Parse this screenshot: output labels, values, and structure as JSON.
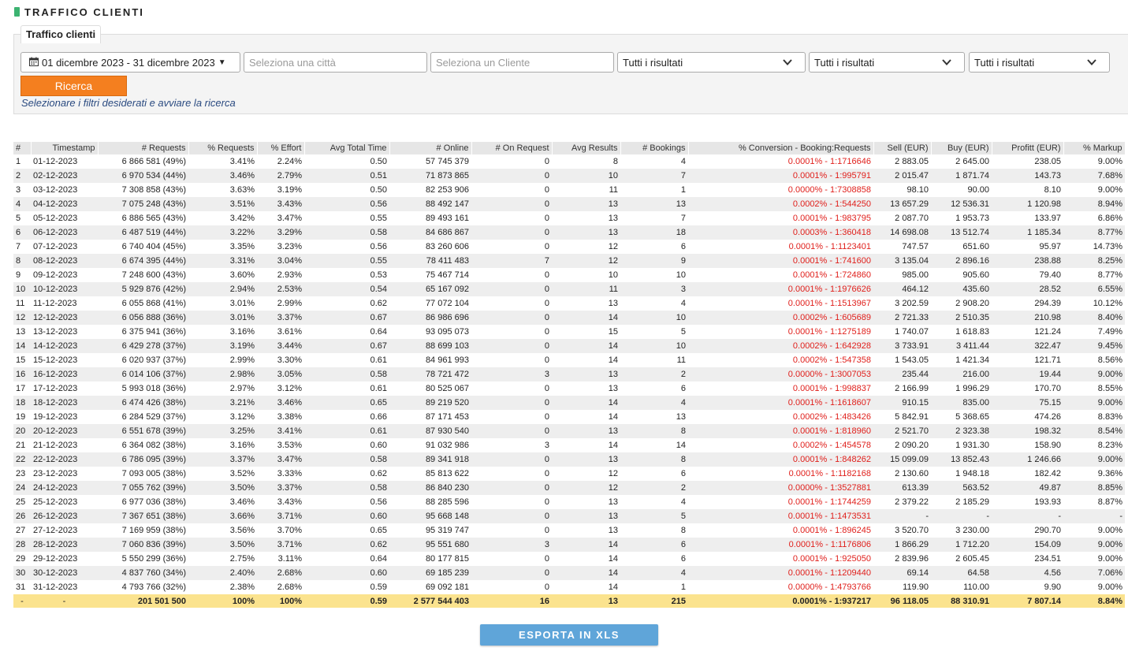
{
  "colors": {
    "header_marker": "#3cb371",
    "search_button": "#f47f1f",
    "conversion_text": "#e0201c",
    "total_row": "#fbe38e",
    "export_button": "#5fa5d9"
  },
  "header": {
    "title": "TRAFFICO CLIENTI"
  },
  "filters": {
    "panel_title": "Traffico clienti",
    "date_range": "01 dicembre 2023 - 31 dicembre 2023",
    "city_placeholder": "Seleziona una città",
    "client_placeholder": "Seleziona un Cliente",
    "select1": "Tutti i risultati",
    "select2": "Tutti i risultati",
    "select3": "Tutti i risultati",
    "search_label": "Ricerca",
    "hint": "Selezionare i filtri desiderati e avviare la ricerca",
    "icons": {
      "date": "calendar-icon",
      "dropdown": "chevron-down-icon"
    }
  },
  "table": {
    "columns": [
      "#",
      "Timestamp",
      "# Requests",
      "% Requests",
      "% Effort",
      "Avg Total Time",
      "# Online",
      "# On Request",
      "Avg Results",
      "# Bookings",
      "% Conversion - Booking:Requests",
      "Sell (EUR)",
      "Buy (EUR)",
      "Profitt (EUR)",
      "% Markup"
    ],
    "rows": [
      [
        "1",
        "01-12-2023",
        "6 866 581 (49%)",
        "3.41%",
        "2.24%",
        "0.50",
        "57 745 379",
        "0",
        "8",
        "4",
        "0.0001% - 1:1716646",
        "2 883.05",
        "2 645.00",
        "238.05",
        "9.00%"
      ],
      [
        "2",
        "02-12-2023",
        "6 970 534 (44%)",
        "3.46%",
        "2.79%",
        "0.51",
        "71 873 865",
        "0",
        "10",
        "7",
        "0.0001% - 1:995791",
        "2 015.47",
        "1 871.74",
        "143.73",
        "7.68%"
      ],
      [
        "3",
        "03-12-2023",
        "7 308 858 (43%)",
        "3.63%",
        "3.19%",
        "0.50",
        "82 253 906",
        "0",
        "11",
        "1",
        "0.0000% - 1:7308858",
        "98.10",
        "90.00",
        "8.10",
        "9.00%"
      ],
      [
        "4",
        "04-12-2023",
        "7 075 248 (43%)",
        "3.51%",
        "3.43%",
        "0.56",
        "88 492 147",
        "0",
        "13",
        "13",
        "0.0002% - 1:544250",
        "13 657.29",
        "12 536.31",
        "1 120.98",
        "8.94%"
      ],
      [
        "5",
        "05-12-2023",
        "6 886 565 (43%)",
        "3.42%",
        "3.47%",
        "0.55",
        "89 493 161",
        "0",
        "13",
        "7",
        "0.0001% - 1:983795",
        "2 087.70",
        "1 953.73",
        "133.97",
        "6.86%"
      ],
      [
        "6",
        "06-12-2023",
        "6 487 519 (44%)",
        "3.22%",
        "3.29%",
        "0.58",
        "84 686 867",
        "0",
        "13",
        "18",
        "0.0003% - 1:360418",
        "14 698.08",
        "13 512.74",
        "1 185.34",
        "8.77%"
      ],
      [
        "7",
        "07-12-2023",
        "6 740 404 (45%)",
        "3.35%",
        "3.23%",
        "0.56",
        "83 260 606",
        "0",
        "12",
        "6",
        "0.0001% - 1:1123401",
        "747.57",
        "651.60",
        "95.97",
        "14.73%"
      ],
      [
        "8",
        "08-12-2023",
        "6 674 395 (44%)",
        "3.31%",
        "3.04%",
        "0.55",
        "78 411 483",
        "7",
        "12",
        "9",
        "0.0001% - 1:741600",
        "3 135.04",
        "2 896.16",
        "238.88",
        "8.25%"
      ],
      [
        "9",
        "09-12-2023",
        "7 248 600 (43%)",
        "3.60%",
        "2.93%",
        "0.53",
        "75 467 714",
        "0",
        "10",
        "10",
        "0.0001% - 1:724860",
        "985.00",
        "905.60",
        "79.40",
        "8.77%"
      ],
      [
        "10",
        "10-12-2023",
        "5 929 876 (42%)",
        "2.94%",
        "2.53%",
        "0.54",
        "65 167 092",
        "0",
        "11",
        "3",
        "0.0001% - 1:1976626",
        "464.12",
        "435.60",
        "28.52",
        "6.55%"
      ],
      [
        "11",
        "11-12-2023",
        "6 055 868 (41%)",
        "3.01%",
        "2.99%",
        "0.62",
        "77 072 104",
        "0",
        "13",
        "4",
        "0.0001% - 1:1513967",
        "3 202.59",
        "2 908.20",
        "294.39",
        "10.12%"
      ],
      [
        "12",
        "12-12-2023",
        "6 056 888 (36%)",
        "3.01%",
        "3.37%",
        "0.67",
        "86 986 696",
        "0",
        "14",
        "10",
        "0.0002% - 1:605689",
        "2 721.33",
        "2 510.35",
        "210.98",
        "8.40%"
      ],
      [
        "13",
        "13-12-2023",
        "6 375 941 (36%)",
        "3.16%",
        "3.61%",
        "0.64",
        "93 095 073",
        "0",
        "15",
        "5",
        "0.0001% - 1:1275189",
        "1 740.07",
        "1 618.83",
        "121.24",
        "7.49%"
      ],
      [
        "14",
        "14-12-2023",
        "6 429 278 (37%)",
        "3.19%",
        "3.44%",
        "0.67",
        "88 699 103",
        "0",
        "14",
        "10",
        "0.0002% - 1:642928",
        "3 733.91",
        "3 411.44",
        "322.47",
        "9.45%"
      ],
      [
        "15",
        "15-12-2023",
        "6 020 937 (37%)",
        "2.99%",
        "3.30%",
        "0.61",
        "84 961 993",
        "0",
        "14",
        "11",
        "0.0002% - 1:547358",
        "1 543.05",
        "1 421.34",
        "121.71",
        "8.56%"
      ],
      [
        "16",
        "16-12-2023",
        "6 014 106 (37%)",
        "2.98%",
        "3.05%",
        "0.58",
        "78 721 472",
        "3",
        "13",
        "2",
        "0.0000% - 1:3007053",
        "235.44",
        "216.00",
        "19.44",
        "9.00%"
      ],
      [
        "17",
        "17-12-2023",
        "5 993 018 (36%)",
        "2.97%",
        "3.12%",
        "0.61",
        "80 525 067",
        "0",
        "13",
        "6",
        "0.0001% - 1:998837",
        "2 166.99",
        "1 996.29",
        "170.70",
        "8.55%"
      ],
      [
        "18",
        "18-12-2023",
        "6 474 426 (38%)",
        "3.21%",
        "3.46%",
        "0.65",
        "89 219 520",
        "0",
        "14",
        "4",
        "0.0001% - 1:1618607",
        "910.15",
        "835.00",
        "75.15",
        "9.00%"
      ],
      [
        "19",
        "19-12-2023",
        "6 284 529 (37%)",
        "3.12%",
        "3.38%",
        "0.66",
        "87 171 453",
        "0",
        "14",
        "13",
        "0.0002% - 1:483426",
        "5 842.91",
        "5 368.65",
        "474.26",
        "8.83%"
      ],
      [
        "20",
        "20-12-2023",
        "6 551 678 (39%)",
        "3.25%",
        "3.41%",
        "0.61",
        "87 930 540",
        "0",
        "13",
        "8",
        "0.0001% - 1:818960",
        "2 521.70",
        "2 323.38",
        "198.32",
        "8.54%"
      ],
      [
        "21",
        "21-12-2023",
        "6 364 082 (38%)",
        "3.16%",
        "3.53%",
        "0.60",
        "91 032 986",
        "3",
        "14",
        "14",
        "0.0002% - 1:454578",
        "2 090.20",
        "1 931.30",
        "158.90",
        "8.23%"
      ],
      [
        "22",
        "22-12-2023",
        "6 786 095 (39%)",
        "3.37%",
        "3.47%",
        "0.58",
        "89 341 918",
        "0",
        "13",
        "8",
        "0.0001% - 1:848262",
        "15 099.09",
        "13 852.43",
        "1 246.66",
        "9.00%"
      ],
      [
        "23",
        "23-12-2023",
        "7 093 005 (38%)",
        "3.52%",
        "3.33%",
        "0.62",
        "85 813 622",
        "0",
        "12",
        "6",
        "0.0001% - 1:1182168",
        "2 130.60",
        "1 948.18",
        "182.42",
        "9.36%"
      ],
      [
        "24",
        "24-12-2023",
        "7 055 762 (39%)",
        "3.50%",
        "3.37%",
        "0.58",
        "86 840 230",
        "0",
        "12",
        "2",
        "0.0000% - 1:3527881",
        "613.39",
        "563.52",
        "49.87",
        "8.85%"
      ],
      [
        "25",
        "25-12-2023",
        "6 977 036 (38%)",
        "3.46%",
        "3.43%",
        "0.56",
        "88 285 596",
        "0",
        "13",
        "4",
        "0.0001% - 1:1744259",
        "2 379.22",
        "2 185.29",
        "193.93",
        "8.87%"
      ],
      [
        "26",
        "26-12-2023",
        "7 367 651 (38%)",
        "3.66%",
        "3.71%",
        "0.60",
        "95 668 148",
        "0",
        "13",
        "5",
        "0.0001% - 1:1473531",
        "-",
        "-",
        "-",
        "-"
      ],
      [
        "27",
        "27-12-2023",
        "7 169 959 (38%)",
        "3.56%",
        "3.70%",
        "0.65",
        "95 319 747",
        "0",
        "13",
        "8",
        "0.0001% - 1:896245",
        "3 520.70",
        "3 230.00",
        "290.70",
        "9.00%"
      ],
      [
        "28",
        "28-12-2023",
        "7 060 836 (39%)",
        "3.50%",
        "3.71%",
        "0.62",
        "95 551 680",
        "3",
        "14",
        "6",
        "0.0001% - 1:1176806",
        "1 866.29",
        "1 712.20",
        "154.09",
        "9.00%"
      ],
      [
        "29",
        "29-12-2023",
        "5 550 299 (36%)",
        "2.75%",
        "3.11%",
        "0.64",
        "80 177 815",
        "0",
        "14",
        "6",
        "0.0001% - 1:925050",
        "2 839.96",
        "2 605.45",
        "234.51",
        "9.00%"
      ],
      [
        "30",
        "30-12-2023",
        "4 837 760 (34%)",
        "2.40%",
        "2.68%",
        "0.60",
        "69 185 239",
        "0",
        "14",
        "4",
        "0.0001% - 1:1209440",
        "69.14",
        "64.58",
        "4.56",
        "7.06%"
      ],
      [
        "31",
        "31-12-2023",
        "4 793 766 (32%)",
        "2.38%",
        "2.68%",
        "0.59",
        "69 092 181",
        "0",
        "14",
        "1",
        "0.0000% - 1:4793766",
        "119.90",
        "110.00",
        "9.90",
        "9.00%"
      ]
    ],
    "totals": [
      "-",
      "-",
      "201 501 500",
      "100%",
      "100%",
      "0.59",
      "2 577 544 403",
      "16",
      "13",
      "215",
      "0.0001% - 1:937217",
      "96 118.05",
      "88 310.91",
      "7 807.14",
      "8.84%"
    ]
  },
  "export": {
    "label": "ESPORTA IN XLS"
  }
}
